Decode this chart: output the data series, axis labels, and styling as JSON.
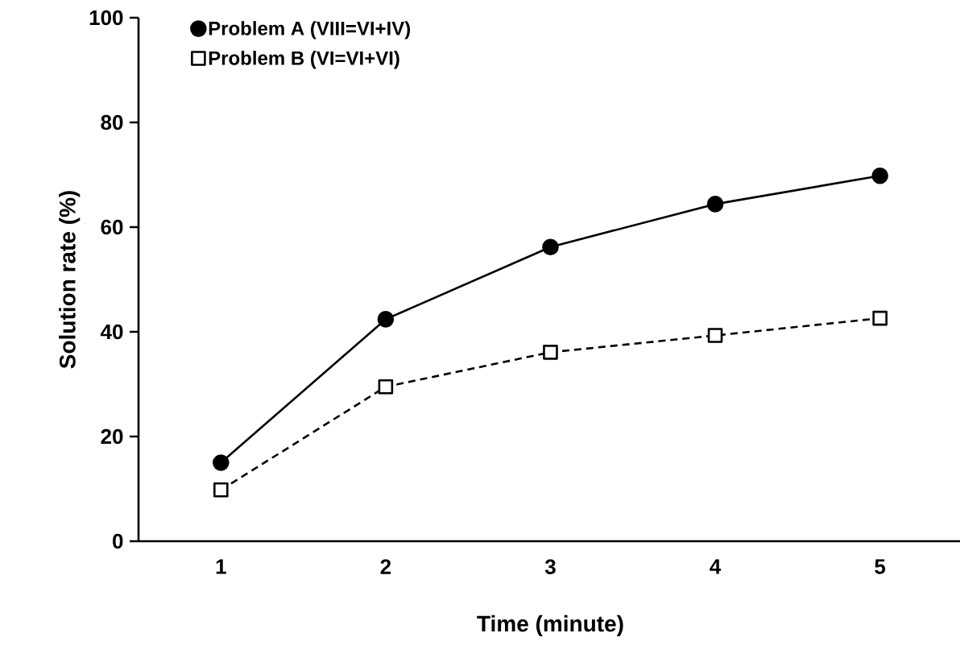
{
  "chart_data": {
    "type": "line",
    "xlabel": "Time (minute)",
    "ylabel": "Solution rate (%)",
    "categories": [
      "1",
      "2",
      "3",
      "4",
      "5"
    ],
    "ylim": [
      0,
      100
    ],
    "yticks": [
      0,
      20,
      40,
      60,
      80,
      100
    ],
    "grid": false,
    "legend": "top left",
    "series": [
      {
        "name": "Problem A (VIII=VI+IV)",
        "color": "#000000",
        "marker": "circle",
        "line_style": "solid",
        "values": [
          15,
          42.4,
          56.2,
          64.4,
          69.8
        ]
      },
      {
        "name": "Problem B (VI=VI+VI)",
        "color": "#000000",
        "marker": "square",
        "line_style": "dashed",
        "values": [
          9.8,
          29.5,
          36.1,
          39.3,
          42.6
        ]
      }
    ]
  }
}
